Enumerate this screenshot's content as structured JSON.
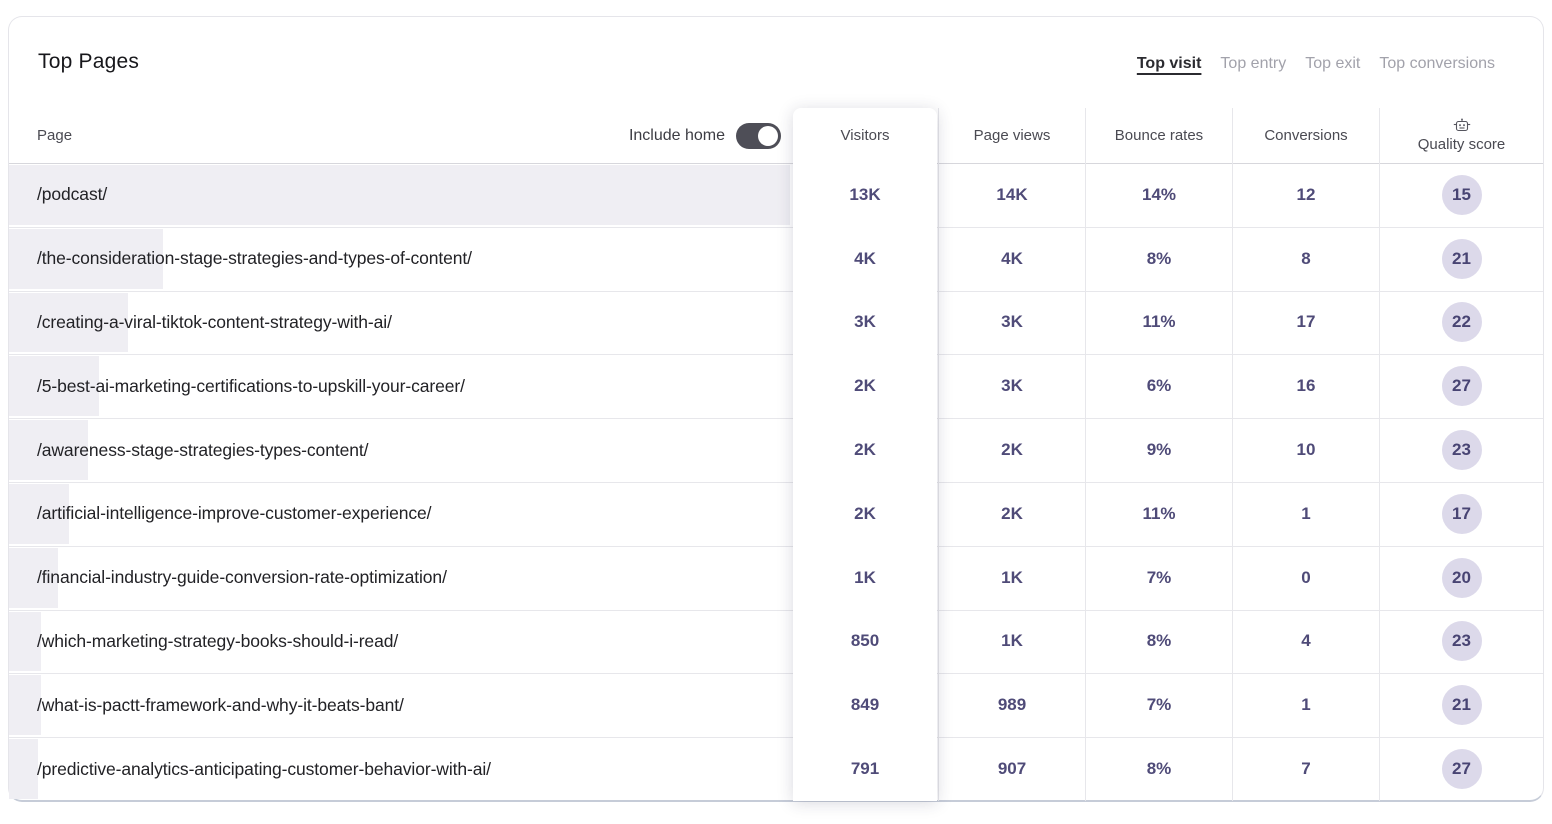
{
  "card": {
    "title": "Top Pages",
    "tabs": [
      {
        "label": "Top visit",
        "active": true
      },
      {
        "label": "Top entry",
        "active": false
      },
      {
        "label": "Top exit",
        "active": false
      },
      {
        "label": "Top conversions",
        "active": false
      }
    ],
    "controls": {
      "include_home_label": "Include home",
      "include_home_on": true
    },
    "columns": {
      "page": "Page",
      "visitors": "Visitors",
      "page_views": "Page views",
      "bounce_rates": "Bounce rates",
      "conversions": "Conversions",
      "quality_score": "Quality score",
      "quality_score_icon": "robot-icon"
    },
    "rows": [
      {
        "page": "/podcast/",
        "bar_pct": 100,
        "visitors": "13K",
        "page_views": "14K",
        "bounce_rate": "14%",
        "conversions": "12",
        "quality_score": "15"
      },
      {
        "page": "/the-consideration-stage-strategies-and-types-of-content/",
        "bar_pct": 19.7,
        "visitors": "4K",
        "page_views": "4K",
        "bounce_rate": "8%",
        "conversions": "8",
        "quality_score": "21"
      },
      {
        "page": "/creating-a-viral-tiktok-content-strategy-with-ai/",
        "bar_pct": 15.2,
        "visitors": "3K",
        "page_views": "3K",
        "bounce_rate": "11%",
        "conversions": "17",
        "quality_score": "22"
      },
      {
        "page": "/5-best-ai-marketing-certifications-to-upskill-your-career/",
        "bar_pct": 11.5,
        "visitors": "2K",
        "page_views": "3K",
        "bounce_rate": "6%",
        "conversions": "16",
        "quality_score": "27"
      },
      {
        "page": "/awareness-stage-strategies-types-content/",
        "bar_pct": 10.1,
        "visitors": "2K",
        "page_views": "2K",
        "bounce_rate": "9%",
        "conversions": "10",
        "quality_score": "23"
      },
      {
        "page": "/artificial-intelligence-improve-customer-experience/",
        "bar_pct": 7.7,
        "visitors": "2K",
        "page_views": "2K",
        "bounce_rate": "11%",
        "conversions": "1",
        "quality_score": "17"
      },
      {
        "page": "/financial-industry-guide-conversion-rate-optimization/",
        "bar_pct": 6.3,
        "visitors": "1K",
        "page_views": "1K",
        "bounce_rate": "7%",
        "conversions": "0",
        "quality_score": "20"
      },
      {
        "page": "/which-marketing-strategy-books-should-i-read/",
        "bar_pct": 4.1,
        "visitors": "850",
        "page_views": "1K",
        "bounce_rate": "8%",
        "conversions": "4",
        "quality_score": "23"
      },
      {
        "page": "/what-is-pactt-framework-and-why-it-beats-bant/",
        "bar_pct": 4.1,
        "visitors": "849",
        "page_views": "989",
        "bounce_rate": "7%",
        "conversions": "1",
        "quality_score": "21"
      },
      {
        "page": "/predictive-analytics-anticipating-customer-behavior-with-ai/",
        "bar_pct": 3.7,
        "visitors": "791",
        "page_views": "907",
        "bounce_rate": "8%",
        "conversions": "7",
        "quality_score": "27"
      }
    ],
    "colors": {
      "accent_text": "#4f4b78",
      "bar_fill": "#efeef3",
      "badge_bg": "#dcd9ea",
      "toggle_on": "#4e4e57",
      "active_tab": "#2b2b30",
      "inactive_tab": "#a2a2ab"
    }
  }
}
